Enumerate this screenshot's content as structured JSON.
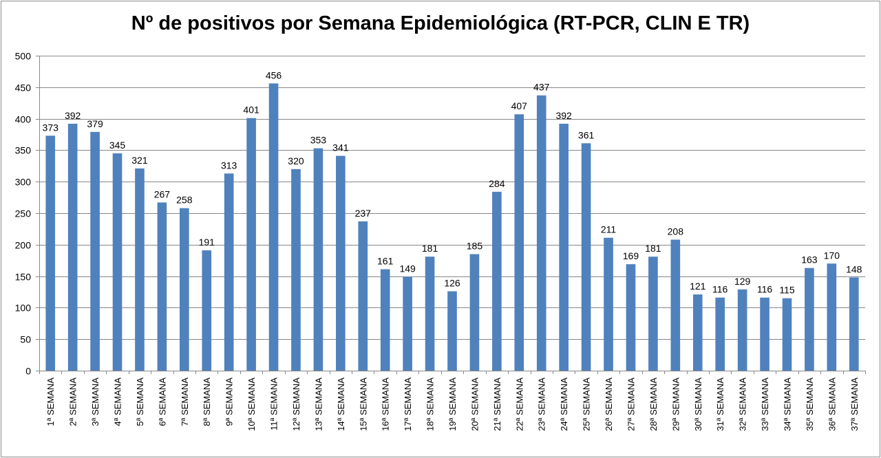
{
  "chart_data": {
    "type": "bar",
    "title": "Nº de positivos por Semana Epidemiológica (RT-PCR, CLIN E TR)",
    "xlabel": "",
    "ylabel": "",
    "ylim": [
      0,
      500
    ],
    "yticks": [
      0,
      50,
      100,
      150,
      200,
      250,
      300,
      350,
      400,
      450,
      500
    ],
    "grid": true,
    "legend": "none",
    "bar_color": "#4F81BD",
    "categories": [
      "1ª SEMANA",
      "2ª SEMANA",
      "3ª SEMANA",
      "4ª SEMANA",
      "5ª SEMANA",
      "6ª SEMANA",
      "7ª SEMANA",
      "8ª SEMANA",
      "9ª SEMANA",
      "10ª SEMANA",
      "11ª SEMANA",
      "12ª SEMANA",
      "13ª SEMANA",
      "14ª SEMANA",
      "15ª SEMANA",
      "16ª SEMANA",
      "17ª SEMANA",
      "18ª SEMANA",
      "19ª SEMANA",
      "20ª SEMANA",
      "21ª SEMANA",
      "22ª SEMANA",
      "23ª SEMANA",
      "24ª SEMANA",
      "25ª SEMANA",
      "26ª SEMANA",
      "27ª SEMANA",
      "28ª SEMANA",
      "29ª SEMANA",
      "30ª SEMANA",
      "31ª SEMANA",
      "32ª SEMANA",
      "33ª SEMANA",
      "34ª SEMANA",
      "35ª SEMANA",
      "36ª SEMANA",
      "37ª SEMANA"
    ],
    "values": [
      373,
      392,
      379,
      345,
      321,
      267,
      258,
      191,
      313,
      401,
      456,
      320,
      353,
      341,
      237,
      161,
      149,
      181,
      126,
      185,
      284,
      407,
      437,
      392,
      361,
      211,
      169,
      181,
      208,
      121,
      116,
      129,
      116,
      115,
      163,
      170,
      148
    ]
  }
}
